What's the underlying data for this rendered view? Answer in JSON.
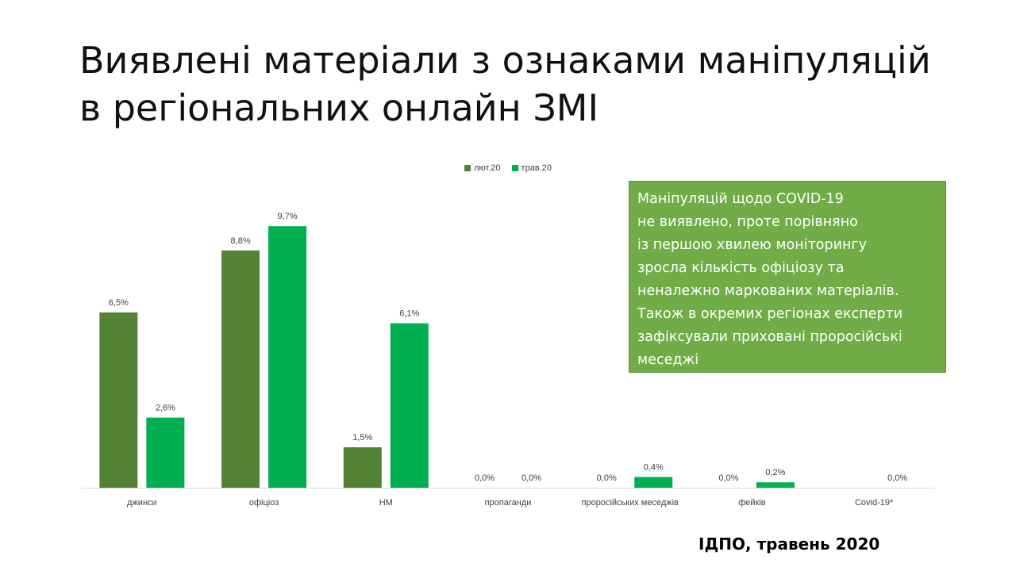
{
  "slide": {
    "title_lines": [
      "Виявлені матеріали з ознаками маніпуляцій",
      "в регіональних онлайн ЗМІ"
    ],
    "note_lines": [
      "Маніпуляцій щодо COVID-19",
      "не виявлено, проте порівняно",
      "із першою хвилею моніторингу",
      "зросла кількість офіціозу та",
      "неналежно маркованих матеріалів.",
      "Також в окремих регіонах експерти",
      "зафіксували приховані проросійські",
      "меседжі"
    ],
    "source": "ІДПО, травень 2020"
  },
  "chart_data": {
    "type": "bar",
    "categories": [
      "джинси",
      "офіціоз",
      "НМ",
      "пропаганди",
      "проросійських меседжів",
      "фейків",
      "Covid-19*"
    ],
    "series": [
      {
        "name": "лют.20",
        "color": "#548235",
        "values": [
          6.5,
          8.8,
          1.5,
          0.0,
          0.0,
          0.0,
          null
        ],
        "labels": [
          "6,5%",
          "8,8%",
          "1,5%",
          "0,0%",
          "0,0%",
          "0,0%",
          null
        ]
      },
      {
        "name": "трав.20",
        "color": "#00b050",
        "values": [
          2.6,
          9.7,
          6.1,
          0.0,
          0.4,
          0.2,
          0.0
        ],
        "labels": [
          "2,6%",
          "9,7%",
          "6,1%",
          "0,0%",
          "0,4%",
          "0,2%",
          "0,0%"
        ]
      }
    ],
    "ylim": [
      0,
      10
    ],
    "value_unit": "%",
    "legend_position": "top-center",
    "grid": false
  }
}
